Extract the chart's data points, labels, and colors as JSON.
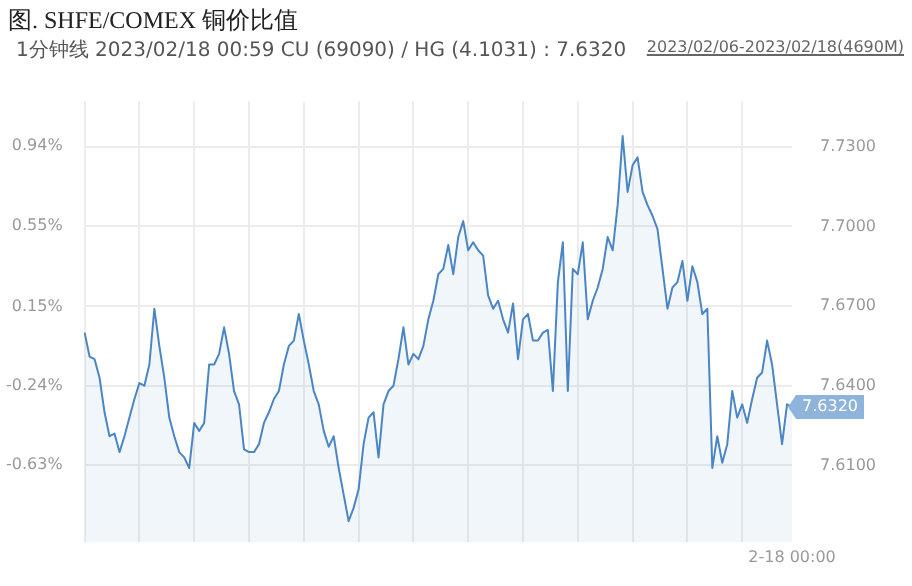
{
  "chart_data": {
    "type": "area",
    "title": "图. SHFE/COMEX 铜价比值",
    "subtitle": "1分钟线 2023/02/18 00:59 CU (69090) / HG (4.1031) : 7.6320",
    "annotations": [
      "2023/02/06-2023/02/18(4690M)",
      "7.6320"
    ],
    "categories": [
      null,
      null,
      null,
      null,
      null,
      null,
      null,
      null,
      null,
      null,
      null,
      null,
      null,
      null,
      null,
      null,
      null,
      null,
      null,
      null,
      null,
      null,
      null,
      null,
      null,
      null,
      null,
      null,
      null,
      null,
      null,
      null,
      null,
      null,
      null,
      null,
      null,
      null,
      null,
      null,
      null,
      null,
      null,
      null,
      null,
      null,
      null,
      null,
      null,
      null,
      null,
      null,
      null,
      null,
      null,
      null,
      null,
      null,
      null,
      null,
      null,
      null,
      null,
      null,
      null,
      null,
      null,
      null,
      null,
      null,
      null,
      null,
      null,
      null,
      null,
      null,
      null,
      null,
      null,
      null,
      null,
      null,
      null,
      null,
      null,
      null,
      null,
      null,
      null,
      null,
      null,
      null,
      null,
      null,
      null,
      null,
      null,
      null,
      null,
      null,
      null,
      null,
      null,
      null,
      null,
      null,
      null,
      null,
      null,
      null,
      null,
      null,
      null,
      null,
      null,
      null,
      null,
      null,
      null,
      null,
      null,
      null,
      null,
      null,
      null,
      null,
      null,
      null,
      null,
      null,
      null,
      null,
      null,
      null,
      null,
      null,
      null,
      null,
      null,
      null,
      null,
      null,
      "2-18 00:00"
    ],
    "series": [
      {
        "color": "#4a86c5",
        "values": [
          7.66,
          7.651,
          7.65,
          7.643,
          7.63,
          7.621,
          7.622,
          7.615,
          7.621,
          7.628,
          7.635,
          7.641,
          7.64,
          7.648,
          7.669,
          7.655,
          7.643,
          7.628,
          7.621,
          7.615,
          7.613,
          7.609,
          7.626,
          7.623,
          7.626,
          7.648,
          7.648,
          7.652,
          7.662,
          7.652,
          7.638,
          7.633,
          7.616,
          7.615,
          7.615,
          7.618,
          7.626,
          7.63,
          7.635,
          7.638,
          7.648,
          7.655,
          7.657,
          7.667,
          7.657,
          7.648,
          7.638,
          7.633,
          7.623,
          7.617,
          7.621,
          7.609,
          7.599,
          7.589,
          7.594,
          7.601,
          7.618,
          7.628,
          7.63,
          7.613,
          7.633,
          7.638,
          7.64,
          7.65,
          7.662,
          7.648,
          7.652,
          7.65,
          7.655,
          7.665,
          7.672,
          7.682,
          7.684,
          7.693,
          7.682,
          7.696,
          7.702,
          7.691,
          7.694,
          7.691,
          7.689,
          7.674,
          7.669,
          7.672,
          7.665,
          7.66,
          7.671,
          7.65,
          7.665,
          7.667,
          7.657,
          7.657,
          7.66,
          7.661,
          7.638,
          7.679,
          7.694,
          7.638,
          7.684,
          7.682,
          7.694,
          7.665,
          7.672,
          7.677,
          7.684,
          7.696,
          7.691,
          7.708,
          7.734,
          7.713,
          7.723,
          7.726,
          7.713,
          7.708,
          7.704,
          7.699,
          7.684,
          7.669,
          7.677,
          7.679,
          7.687,
          7.672,
          7.685,
          7.679,
          7.667,
          7.669,
          7.609,
          7.621,
          7.611,
          7.618,
          7.638,
          7.628,
          7.633,
          7.626,
          7.635,
          7.643,
          7.645,
          7.657,
          7.648,
          7.633,
          7.618,
          7.633,
          7.632
        ]
      }
    ],
    "ylim": [
      7.581,
      7.747
    ],
    "yticks": [
      {
        "value": 7.61,
        "label": "7.6100"
      },
      {
        "value": 7.64,
        "label": "7.6400"
      },
      {
        "value": 7.67,
        "label": "7.6700"
      },
      {
        "value": 7.7,
        "label": "7.7000"
      },
      {
        "value": 7.73,
        "label": "7.7300"
      }
    ],
    "y2lim": [
      -1.01,
      1.16
    ],
    "y2ticks": [
      {
        "value": -0.63,
        "label": "-0.63%"
      },
      {
        "value": -0.24,
        "label": "-0.24%"
      },
      {
        "value": 0.15,
        "label": "0.15%"
      },
      {
        "value": 0.55,
        "label": "0.55%"
      },
      {
        "value": 0.94,
        "label": "0.94%"
      }
    ],
    "grid": true,
    "legend": false,
    "marker": "none",
    "line_style": "solid"
  }
}
